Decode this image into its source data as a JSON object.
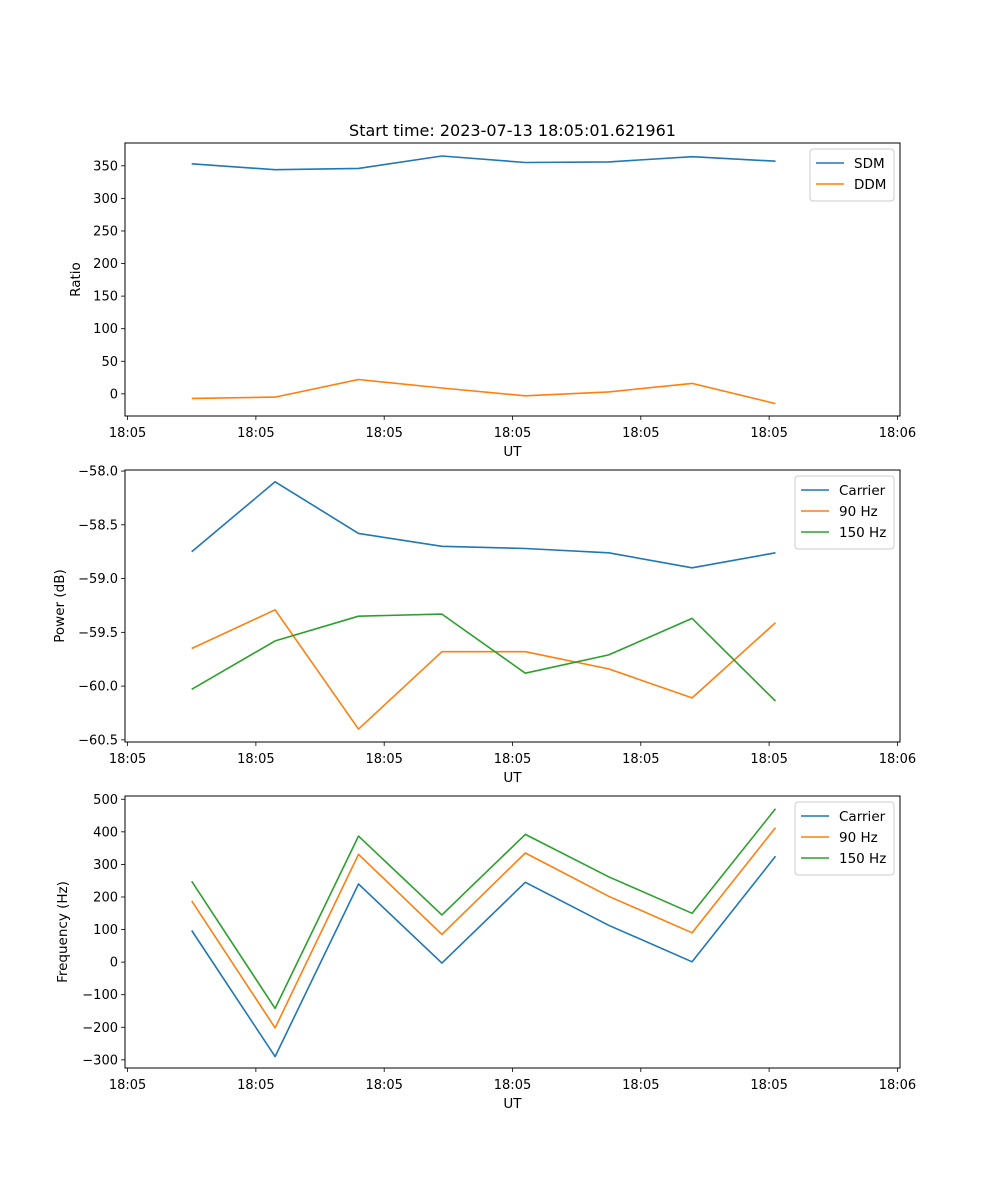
{
  "figure": {
    "title": "Start time: 2023-07-13 18:05:01.621961"
  },
  "chart_data": [
    {
      "type": "line",
      "title": "Start time: 2023-07-13 18:05:01.621961",
      "xlabel": "UT",
      "ylabel": "Ratio",
      "x_tick_labels": [
        "18:05",
        "18:05",
        "18:05",
        "18:05",
        "18:05",
        "18:05",
        "18:06"
      ],
      "x_ticks": [
        0,
        1,
        2,
        3,
        4,
        5,
        6
      ],
      "xlim": [
        -0.02,
        6.02
      ],
      "x": [
        0.5,
        1.15,
        1.8,
        2.45,
        3.1,
        3.75,
        4.4,
        5.05
      ],
      "y_ticks": [
        0,
        50,
        100,
        150,
        200,
        250,
        300,
        350
      ],
      "ylim": [
        -34,
        385
      ],
      "legend_position": "upper-right",
      "series": [
        {
          "name": "SDM",
          "color": "#1f77b4",
          "values": [
            353,
            344,
            346,
            365,
            355,
            356,
            364,
            357
          ]
        },
        {
          "name": "DDM",
          "color": "#ff7f0e",
          "values": [
            -7,
            -5,
            22,
            9,
            -3,
            3,
            16,
            -15
          ]
        }
      ]
    },
    {
      "type": "line",
      "xlabel": "UT",
      "ylabel": "Power (dB)",
      "x_tick_labels": [
        "18:05",
        "18:05",
        "18:05",
        "18:05",
        "18:05",
        "18:05",
        "18:06"
      ],
      "x_ticks": [
        0,
        1,
        2,
        3,
        4,
        5,
        6
      ],
      "xlim": [
        -0.02,
        6.02
      ],
      "x": [
        0.5,
        1.15,
        1.8,
        2.45,
        3.1,
        3.75,
        4.4,
        5.05
      ],
      "y_ticks": [
        -60.5,
        -60.0,
        -59.5,
        -59.0,
        -58.5,
        -58.0
      ],
      "y_tick_labels": [
        "−60.5",
        "−60.0",
        "−59.5",
        "−59.0",
        "−58.5",
        "−58.0"
      ],
      "ylim": [
        -60.52,
        -57.99
      ],
      "legend_position": "upper-right",
      "series": [
        {
          "name": "Carrier",
          "color": "#1f77b4",
          "values": [
            -58.75,
            -58.1,
            -58.58,
            -58.7,
            -58.72,
            -58.76,
            -58.9,
            -58.76
          ]
        },
        {
          "name": "90 Hz",
          "color": "#ff7f0e",
          "values": [
            -59.65,
            -59.29,
            -60.4,
            -59.68,
            -59.68,
            -59.84,
            -60.11,
            -59.41
          ]
        },
        {
          "name": "150 Hz",
          "color": "#2ca02c",
          "values": [
            -60.03,
            -59.58,
            -59.35,
            -59.33,
            -59.88,
            -59.71,
            -59.37,
            -60.14
          ]
        }
      ]
    },
    {
      "type": "line",
      "xlabel": "UT",
      "ylabel": "Frequency (Hz)",
      "x_tick_labels": [
        "18:05",
        "18:05",
        "18:05",
        "18:05",
        "18:05",
        "18:05",
        "18:06"
      ],
      "x_ticks": [
        0,
        1,
        2,
        3,
        4,
        5,
        6
      ],
      "xlim": [
        -0.02,
        6.02
      ],
      "x": [
        0.5,
        1.15,
        1.8,
        2.45,
        3.1,
        3.75,
        4.4,
        5.05
      ],
      "y_ticks": [
        -300,
        -200,
        -100,
        0,
        100,
        200,
        300,
        400,
        500
      ],
      "y_tick_labels": [
        "−300",
        "−200",
        "−100",
        "0",
        "100",
        "200",
        "300",
        "400",
        "500"
      ],
      "ylim": [
        -325,
        510
      ],
      "legend_position": "upper-right",
      "series": [
        {
          "name": "Carrier",
          "color": "#1f77b4",
          "values": [
            97,
            -290,
            240,
            -3,
            245,
            113,
            1,
            325
          ]
        },
        {
          "name": "90 Hz",
          "color": "#ff7f0e",
          "values": [
            188,
            -202,
            331,
            85,
            335,
            202,
            90,
            413
          ]
        },
        {
          "name": "150 Hz",
          "color": "#2ca02c",
          "values": [
            248,
            -142,
            387,
            145,
            392,
            262,
            150,
            471
          ]
        }
      ]
    }
  ]
}
